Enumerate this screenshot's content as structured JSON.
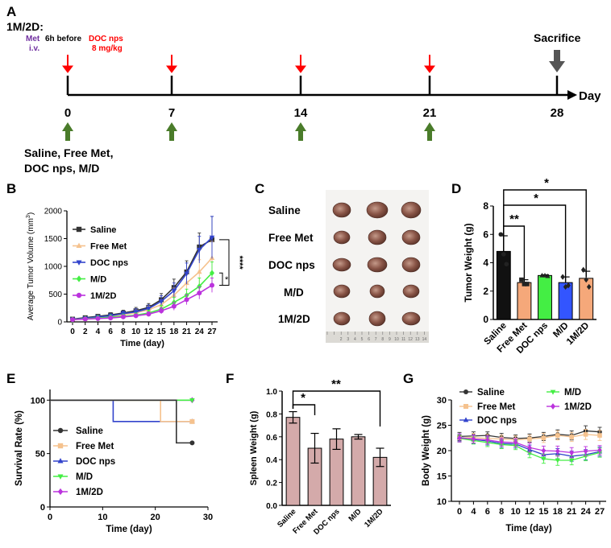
{
  "panel_a": {
    "letter": "A",
    "group_title": "1M/2D:",
    "met_label": "Met",
    "iv_label": "i.v.",
    "before_label": "6h before",
    "doc_label": "DOC nps",
    "dose_label": "8 mg/kg",
    "sacrifice_label": "Sacrifice",
    "axis_label": "Day",
    "days": [
      "0",
      "7",
      "14",
      "21",
      "28"
    ],
    "groups_line1": "Saline, Free Met,",
    "groups_line2": "DOC nps, M/D",
    "colors": {
      "met": "#7030a0",
      "doc": "#ff0000",
      "green_arrow": "#4a7c2a",
      "sacrifice": "#555555"
    }
  },
  "panel_b_letter": "B",
  "panel_c": {
    "letter": "C",
    "row_labels": [
      "Saline",
      "Free Met",
      "DOC nps",
      "M/D",
      "1M/2D"
    ]
  },
  "panel_d_letter": "D",
  "panel_e_letter": "E",
  "panel_f_letter": "F",
  "panel_g_letter": "G",
  "chart_data": [
    {
      "panel": "B",
      "type": "line",
      "ylabel_main": "Average Tumor Volume (mm",
      "ylabel_sup": "3",
      "ylabel_end": ")",
      "xlabel": "Time (day)",
      "ylim": [
        0,
        2000
      ],
      "yticks": [
        "0",
        "500",
        "1000",
        "1500",
        "2000"
      ],
      "categories": [
        "0",
        "2",
        "4",
        "6",
        "8",
        "10",
        "12",
        "15",
        "18",
        "21",
        "24",
        "27"
      ],
      "series": [
        {
          "name": "Saline",
          "color": "#333333",
          "marker": "square",
          "values": [
            50,
            75,
            100,
            125,
            160,
            200,
            260,
            400,
            620,
            900,
            1350,
            1480
          ],
          "err": [
            20,
            25,
            30,
            40,
            50,
            60,
            70,
            110,
            150,
            200,
            250,
            420
          ]
        },
        {
          "name": "Free Met",
          "color": "#f5c28e",
          "marker": "triangle-up",
          "values": [
            45,
            60,
            80,
            100,
            130,
            165,
            220,
            310,
            480,
            700,
            900,
            1150
          ],
          "err": [
            15,
            20,
            25,
            30,
            40,
            50,
            60,
            90,
            130,
            170,
            220,
            300
          ]
        },
        {
          "name": "DOC nps",
          "color": "#3344cc",
          "marker": "triangle-down",
          "values": [
            45,
            65,
            90,
            110,
            150,
            180,
            240,
            370,
            560,
            870,
            1300,
            1520
          ],
          "err": [
            15,
            20,
            25,
            35,
            45,
            55,
            65,
            100,
            140,
            190,
            240,
            380
          ]
        },
        {
          "name": "M/D",
          "color": "#44ee44",
          "marker": "diamond",
          "values": [
            40,
            55,
            70,
            85,
            100,
            120,
            160,
            230,
            350,
            480,
            640,
            880
          ],
          "err": [
            10,
            15,
            20,
            25,
            30,
            40,
            50,
            70,
            90,
            110,
            150,
            200
          ]
        },
        {
          "name": "1M/2D",
          "color": "#bb33dd",
          "marker": "circle",
          "values": [
            40,
            50,
            60,
            70,
            90,
            110,
            140,
            200,
            280,
            400,
            520,
            660
          ],
          "err": [
            10,
            15,
            18,
            20,
            25,
            30,
            40,
            55,
            70,
            90,
            110,
            130
          ]
        }
      ],
      "annotations": [
        "*",
        "****"
      ]
    },
    {
      "panel": "D",
      "type": "bar",
      "ylabel": "Tumor Weight (g)",
      "ylim": [
        0,
        8
      ],
      "yticks": [
        "0",
        "2",
        "4",
        "6",
        "8"
      ],
      "categories": [
        "Saline",
        "Free Met",
        "DOC nps",
        "M/D",
        "1M/2D"
      ],
      "values": [
        4.8,
        2.6,
        3.1,
        2.6,
        2.9
      ],
      "err": [
        1.1,
        0.2,
        0.05,
        0.4,
        0.5
      ],
      "colors": [
        "#111111",
        "#f5a87a",
        "#44ee44",
        "#3355ff",
        "#f5a87a"
      ],
      "points": [
        [
          6.0,
          4.6,
          3.9
        ],
        [
          2.8,
          2.5,
          2.5
        ],
        [
          3.1,
          3.1,
          3.05
        ],
        [
          3.0,
          2.3,
          2.4
        ],
        [
          3.5,
          2.8,
          2.3
        ]
      ],
      "significance": [
        {
          "from": 0,
          "to": 1,
          "label": "**"
        },
        {
          "from": 0,
          "to": 3,
          "label": "*"
        },
        {
          "from": 0,
          "to": 4,
          "label": "*"
        }
      ]
    },
    {
      "panel": "E",
      "type": "line",
      "ylabel": "Survival Rate (%)",
      "xlabel": "Time (day)",
      "xlim": [
        0,
        30
      ],
      "ylim": [
        0,
        110
      ],
      "xticks": [
        "0",
        "10",
        "20",
        "30"
      ],
      "yticks": [
        "0",
        "50",
        "100"
      ],
      "series": [
        {
          "name": "Saline",
          "color": "#333333",
          "marker": "circle",
          "x": [
            0,
            24,
            24,
            27
          ],
          "y": [
            100,
            100,
            60,
            60
          ]
        },
        {
          "name": "Free Met",
          "color": "#f5c28e",
          "marker": "square",
          "x": [
            0,
            21,
            21,
            27
          ],
          "y": [
            100,
            100,
            80,
            80
          ]
        },
        {
          "name": "DOC nps",
          "color": "#3344cc",
          "marker": "triangle-up",
          "x": [
            0,
            12,
            12,
            27
          ],
          "y": [
            100,
            100,
            80,
            80
          ]
        },
        {
          "name": "M/D",
          "color": "#44ee44",
          "marker": "triangle-down",
          "x": [
            0,
            27
          ],
          "y": [
            100,
            100
          ]
        },
        {
          "name": "1M/2D",
          "color": "#bb33dd",
          "marker": "diamond",
          "x": [
            0,
            27
          ],
          "y": [
            100,
            100
          ]
        }
      ]
    },
    {
      "panel": "F",
      "type": "bar",
      "ylabel": "Spleen Weight (g)",
      "ylim": [
        0,
        1.0
      ],
      "yticks": [
        "0.0",
        "0.2",
        "0.4",
        "0.6",
        "0.8",
        "1.0"
      ],
      "categories": [
        "Saline",
        "Free Met",
        "DOC nps",
        "M/D",
        "1M/2D"
      ],
      "values": [
        0.77,
        0.5,
        0.58,
        0.6,
        0.42
      ],
      "err": [
        0.05,
        0.13,
        0.09,
        0.02,
        0.08
      ],
      "bar_color": "#d4aaaa",
      "significance": [
        {
          "from": 0,
          "to": 1,
          "label": "*"
        },
        {
          "from": 0,
          "to": 4,
          "label": "**"
        }
      ]
    },
    {
      "panel": "G",
      "type": "line",
      "ylabel": "Body Weight (g)",
      "xlabel": "Time (day)",
      "ylim": [
        10,
        30
      ],
      "yticks": [
        "10",
        "15",
        "20",
        "25",
        "30"
      ],
      "categories": [
        "0",
        "4",
        "6",
        "8",
        "10",
        "12",
        "15",
        "18",
        "21",
        "24",
        "27"
      ],
      "series": [
        {
          "name": "Saline",
          "color": "#333333",
          "marker": "circle",
          "values": [
            22.8,
            22.9,
            23.0,
            22.6,
            22.4,
            22.5,
            22.8,
            23.2,
            23.0,
            23.9,
            23.7
          ],
          "err": [
            0.8,
            0.8,
            0.7,
            0.8,
            0.7,
            0.8,
            0.8,
            0.9,
            0.9,
            1.0,
            0.9
          ]
        },
        {
          "name": "Free Met",
          "color": "#f5c28e",
          "marker": "square",
          "values": [
            22.5,
            22.6,
            22.4,
            22.3,
            22.1,
            22.3,
            22.5,
            23.0,
            22.7,
            23.2,
            23.0
          ],
          "err": [
            0.8,
            0.8,
            0.8,
            0.8,
            0.8,
            0.8,
            0.9,
            0.9,
            0.9,
            1.0,
            1.0
          ]
        },
        {
          "name": "DOC nps",
          "color": "#3344cc",
          "marker": "triangle-up",
          "values": [
            22.6,
            22.2,
            21.9,
            21.4,
            21.3,
            20.2,
            19.2,
            19.4,
            18.9,
            19.2,
            19.8
          ],
          "err": [
            0.7,
            0.8,
            0.8,
            0.8,
            0.8,
            0.9,
            0.9,
            1.0,
            1.0,
            1.0,
            0.9
          ]
        },
        {
          "name": "M/D",
          "color": "#44ee44",
          "marker": "triangle-down",
          "values": [
            22.4,
            22.0,
            21.6,
            21.2,
            21.0,
            19.5,
            18.4,
            18.1,
            18.1,
            18.9,
            19.6
          ],
          "err": [
            0.7,
            0.7,
            0.8,
            0.8,
            0.8,
            0.9,
            0.9,
            1.0,
            0.9,
            0.9,
            0.9
          ]
        },
        {
          "name": "1M/2D",
          "color": "#bb33dd",
          "marker": "diamond",
          "values": [
            22.5,
            22.3,
            22.1,
            21.7,
            21.6,
            20.6,
            20.0,
            19.9,
            19.6,
            19.9,
            20.1
          ],
          "err": [
            0.8,
            0.8,
            0.8,
            0.8,
            0.8,
            0.9,
            0.9,
            1.0,
            1.0,
            0.9,
            0.9
          ]
        }
      ]
    }
  ]
}
